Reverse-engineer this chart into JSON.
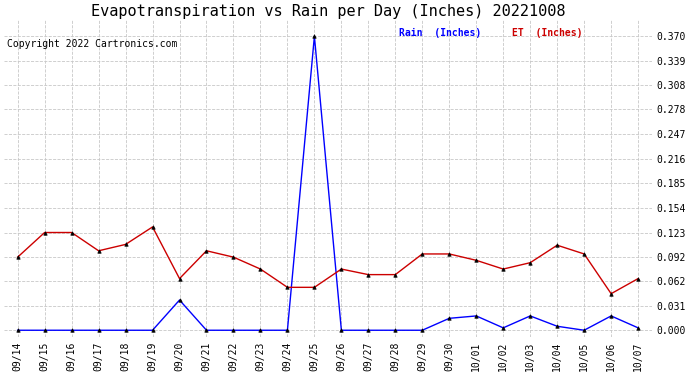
{
  "title": "Evapotranspiration vs Rain per Day (Inches) 20221008",
  "copyright": "Copyright 2022 Cartronics.com",
  "legend_rain": "Rain  (Inches)",
  "legend_et": "ET  (Inches)",
  "dates": [
    "09/14",
    "09/15",
    "09/16",
    "09/17",
    "09/18",
    "09/19",
    "09/20",
    "09/21",
    "09/22",
    "09/23",
    "09/24",
    "09/25",
    "09/26",
    "09/27",
    "09/28",
    "09/29",
    "09/30",
    "10/01",
    "10/02",
    "10/03",
    "10/04",
    "10/05",
    "10/06",
    "10/07"
  ],
  "rain": [
    0.0,
    0.0,
    0.0,
    0.0,
    0.0,
    0.0,
    0.038,
    0.0,
    0.0,
    0.0,
    0.0,
    0.37,
    0.0,
    0.0,
    0.0,
    0.0,
    0.015,
    0.018,
    0.003,
    0.018,
    0.005,
    0.0,
    0.018,
    0.003
  ],
  "et": [
    0.092,
    0.123,
    0.123,
    0.1,
    0.108,
    0.13,
    0.065,
    0.1,
    0.092,
    0.077,
    0.054,
    0.054,
    0.077,
    0.07,
    0.07,
    0.096,
    0.096,
    0.088,
    0.077,
    0.085,
    0.107,
    0.096,
    0.046,
    0.065
  ],
  "rain_color": "#0000ff",
  "et_color": "#cc0000",
  "marker_color": "#000000",
  "background_color": "#ffffff",
  "grid_color": "#c8c8c8",
  "yticks": [
    0.0,
    0.031,
    0.062,
    0.092,
    0.123,
    0.154,
    0.185,
    0.216,
    0.247,
    0.278,
    0.308,
    0.339,
    0.37
  ],
  "ylim": [
    -0.008,
    0.39
  ],
  "title_fontsize": 11,
  "axis_fontsize": 7,
  "copyright_fontsize": 7
}
